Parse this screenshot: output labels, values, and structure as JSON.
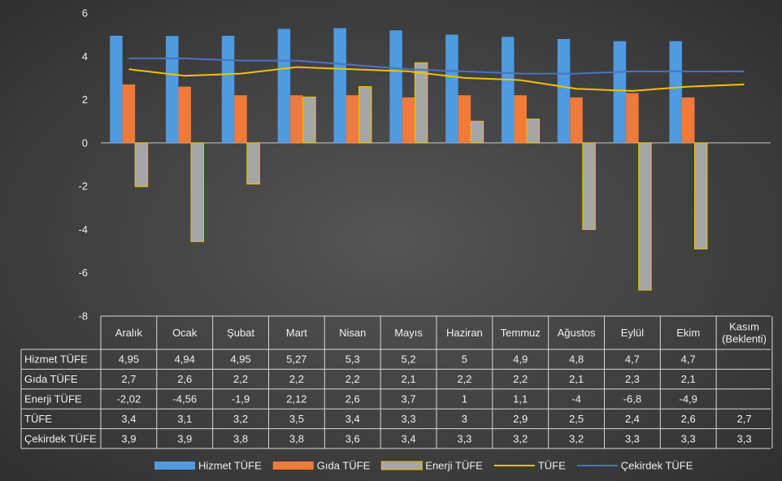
{
  "chart_data": {
    "type": "bar",
    "categories": [
      "Aralık",
      "Ocak",
      "Şubat",
      "Mart",
      "Nisan",
      "Mayıs",
      "Haziran",
      "Temmuz",
      "Ağustos",
      "Eylül",
      "Ekim",
      "Kasım (Beklenti)"
    ],
    "category_lines": [
      [
        "Aralık"
      ],
      [
        "Ocak"
      ],
      [
        "Şubat"
      ],
      [
        "Mart"
      ],
      [
        "Nisan"
      ],
      [
        "Mayıs"
      ],
      [
        "Haziran"
      ],
      [
        "Temmuz"
      ],
      [
        "Ağustos"
      ],
      [
        "Eylül"
      ],
      [
        "Ekim"
      ],
      [
        "Kasım",
        "(Beklenti)"
      ]
    ],
    "series": [
      {
        "name": "Hizmet TÜFE",
        "kind": "bar",
        "color": "#4f9ae0",
        "values": [
          4.95,
          4.94,
          4.95,
          5.27,
          5.3,
          5.2,
          5,
          4.9,
          4.8,
          4.7,
          4.7,
          null
        ],
        "labels": [
          "4,95",
          "4,94",
          "4,95",
          "5,27",
          "5,3",
          "5,2",
          "5",
          "4,9",
          "4,8",
          "4,7",
          "4,7",
          ""
        ]
      },
      {
        "name": "Gıda TÜFE",
        "kind": "bar",
        "color": "#f07a3a",
        "values": [
          2.7,
          2.6,
          2.2,
          2.2,
          2.2,
          2.1,
          2.2,
          2.2,
          2.1,
          2.3,
          2.1,
          null
        ],
        "labels": [
          "2,7",
          "2,6",
          "2,2",
          "2,2",
          "2,2",
          "2,1",
          "2,2",
          "2,2",
          "2,1",
          "2,3",
          "2,1",
          ""
        ]
      },
      {
        "name": "Enerji TÜFE",
        "kind": "bar",
        "color": "#a6a6a6",
        "border": "#f2c000",
        "values": [
          -2.02,
          -4.56,
          -1.9,
          2.12,
          2.6,
          3.7,
          1,
          1.1,
          -4,
          -6.8,
          -4.9,
          null
        ],
        "labels": [
          "-2,02",
          "-4,56",
          "-1,9",
          "2,12",
          "2,6",
          "3,7",
          "1",
          "1,1",
          "-4",
          "-6,8",
          "-4,9",
          ""
        ]
      },
      {
        "name": "TÜFE",
        "kind": "line",
        "color": "#f2c000",
        "values": [
          3.4,
          3.1,
          3.2,
          3.5,
          3.4,
          3.3,
          3,
          2.9,
          2.5,
          2.4,
          2.6,
          2.7
        ],
        "labels": [
          "3,4",
          "3,1",
          "3,2",
          "3,5",
          "3,4",
          "3,3",
          "3",
          "2,9",
          "2,5",
          "2,4",
          "2,6",
          "2,7"
        ]
      },
      {
        "name": "Çekirdek TÜFE",
        "kind": "line",
        "color": "#4a72c4",
        "values": [
          3.9,
          3.9,
          3.8,
          3.8,
          3.6,
          3.4,
          3.3,
          3.2,
          3.2,
          3.3,
          3.3,
          3.3
        ],
        "labels": [
          "3,9",
          "3,9",
          "3,8",
          "3,8",
          "3,6",
          "3,4",
          "3,3",
          "3,2",
          "3,2",
          "3,3",
          "3,3",
          "3,3"
        ]
      }
    ],
    "yticks": [
      6,
      4,
      2,
      0,
      -2,
      -4,
      -6,
      -8
    ],
    "ylim": [
      -8,
      6
    ],
    "grid": false,
    "data_table": true,
    "legend_position": "bottom"
  }
}
